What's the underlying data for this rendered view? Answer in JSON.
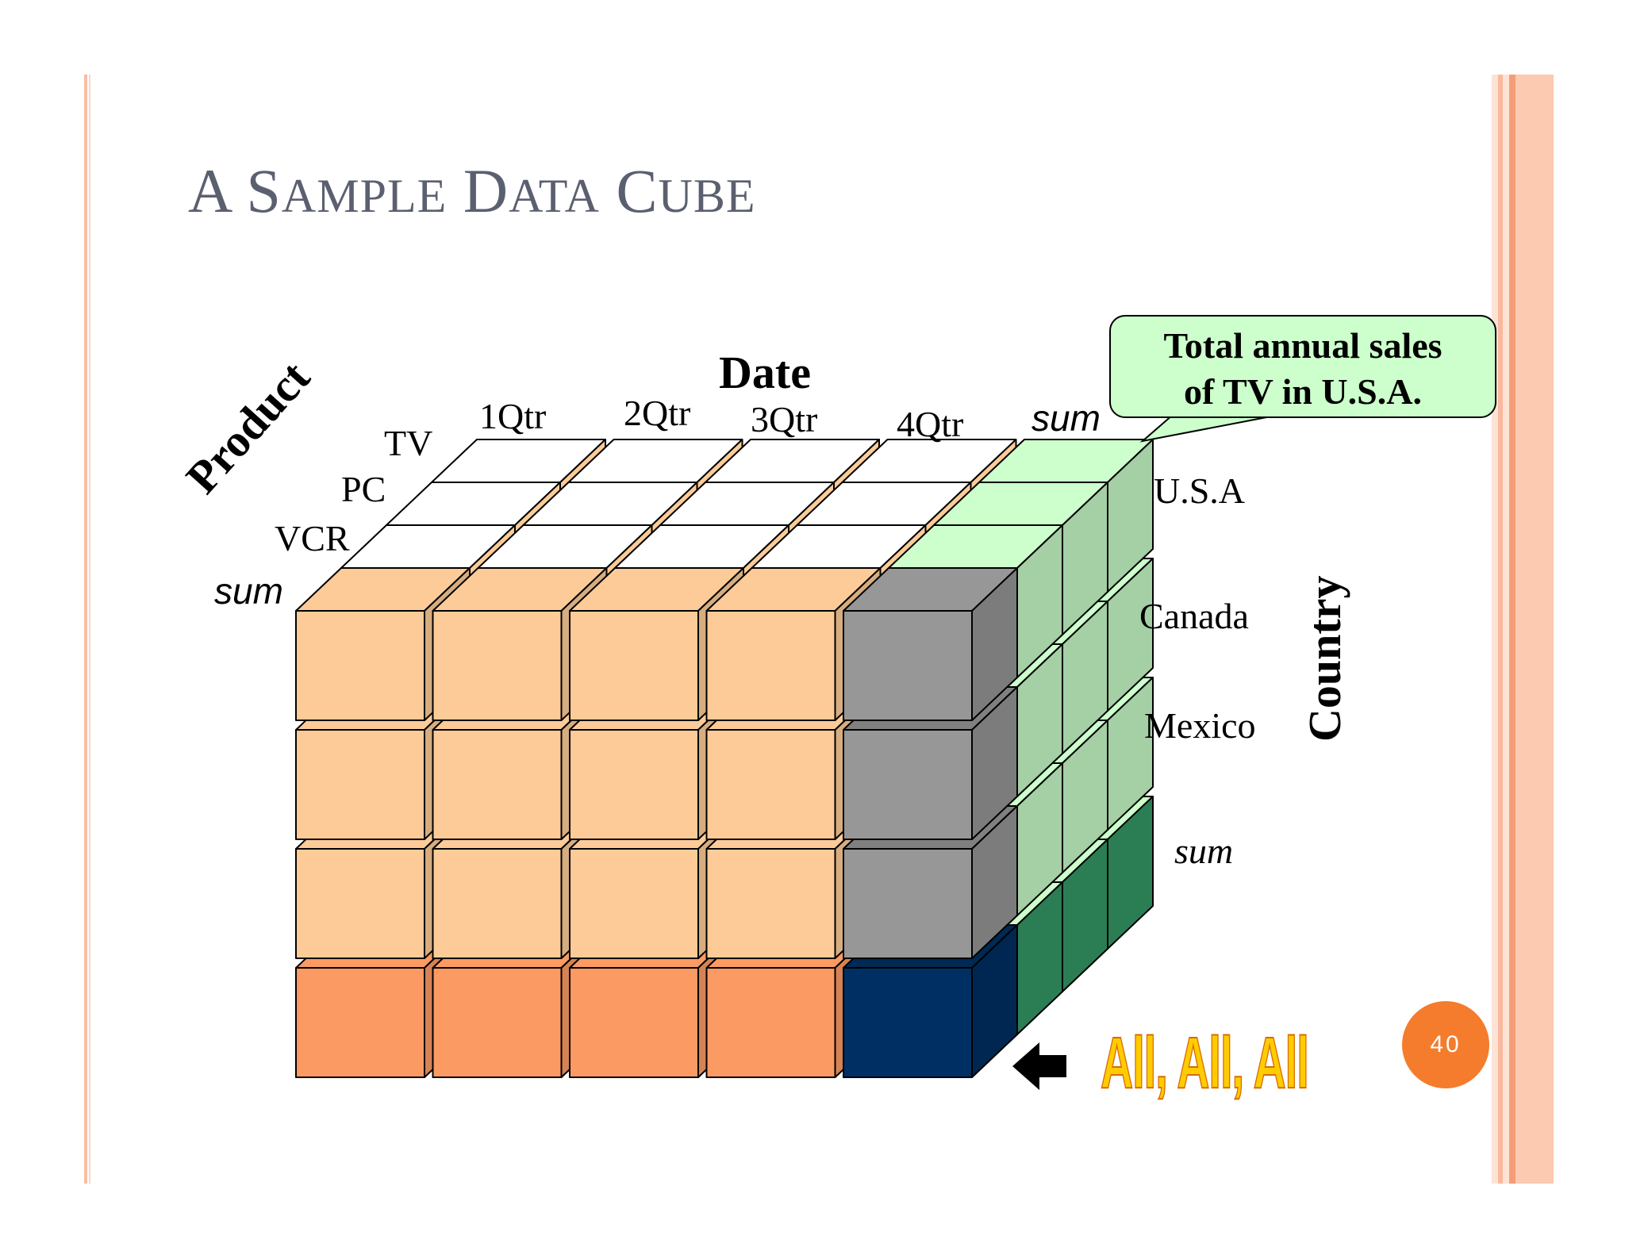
{
  "slide": {
    "title": {
      "first": "A",
      "w1_cap": "S",
      "w1_rest": "AMPLE",
      "w2_cap": "D",
      "w2_rest": "ATA",
      "w3_cap": "C",
      "w3_rest": "UBE"
    },
    "page_number": "40",
    "stripe_color": "#f7bda3"
  },
  "cube": {
    "date_axis": {
      "label": "Date",
      "ticks": [
        "1Qtr",
        "2Qtr",
        "3Qtr",
        "4Qtr"
      ],
      "sum_label": "sum"
    },
    "product_axis": {
      "label": "Product",
      "ticks": [
        "TV",
        "PC",
        "VCR"
      ],
      "sum_label": "sum"
    },
    "country_axis": {
      "label": "Country",
      "ticks": [
        "U.S.A",
        "Canada",
        "Mexico"
      ],
      "sum_label": "sum"
    },
    "colors": {
      "base_face": "#fccb98",
      "product_sum_face": "#fb9a63",
      "date_sum_face": "#979797",
      "grand_total_face": "#003063",
      "country_face": "#a5cfa5",
      "country_top": "#ccffcc",
      "country_sum_face": "#2b7e54",
      "top_face": "#ffffff"
    }
  },
  "callout": {
    "line1": "Total annual sales",
    "line2": "of  TV in U.S.A."
  },
  "all_all_all": "All, All, All"
}
